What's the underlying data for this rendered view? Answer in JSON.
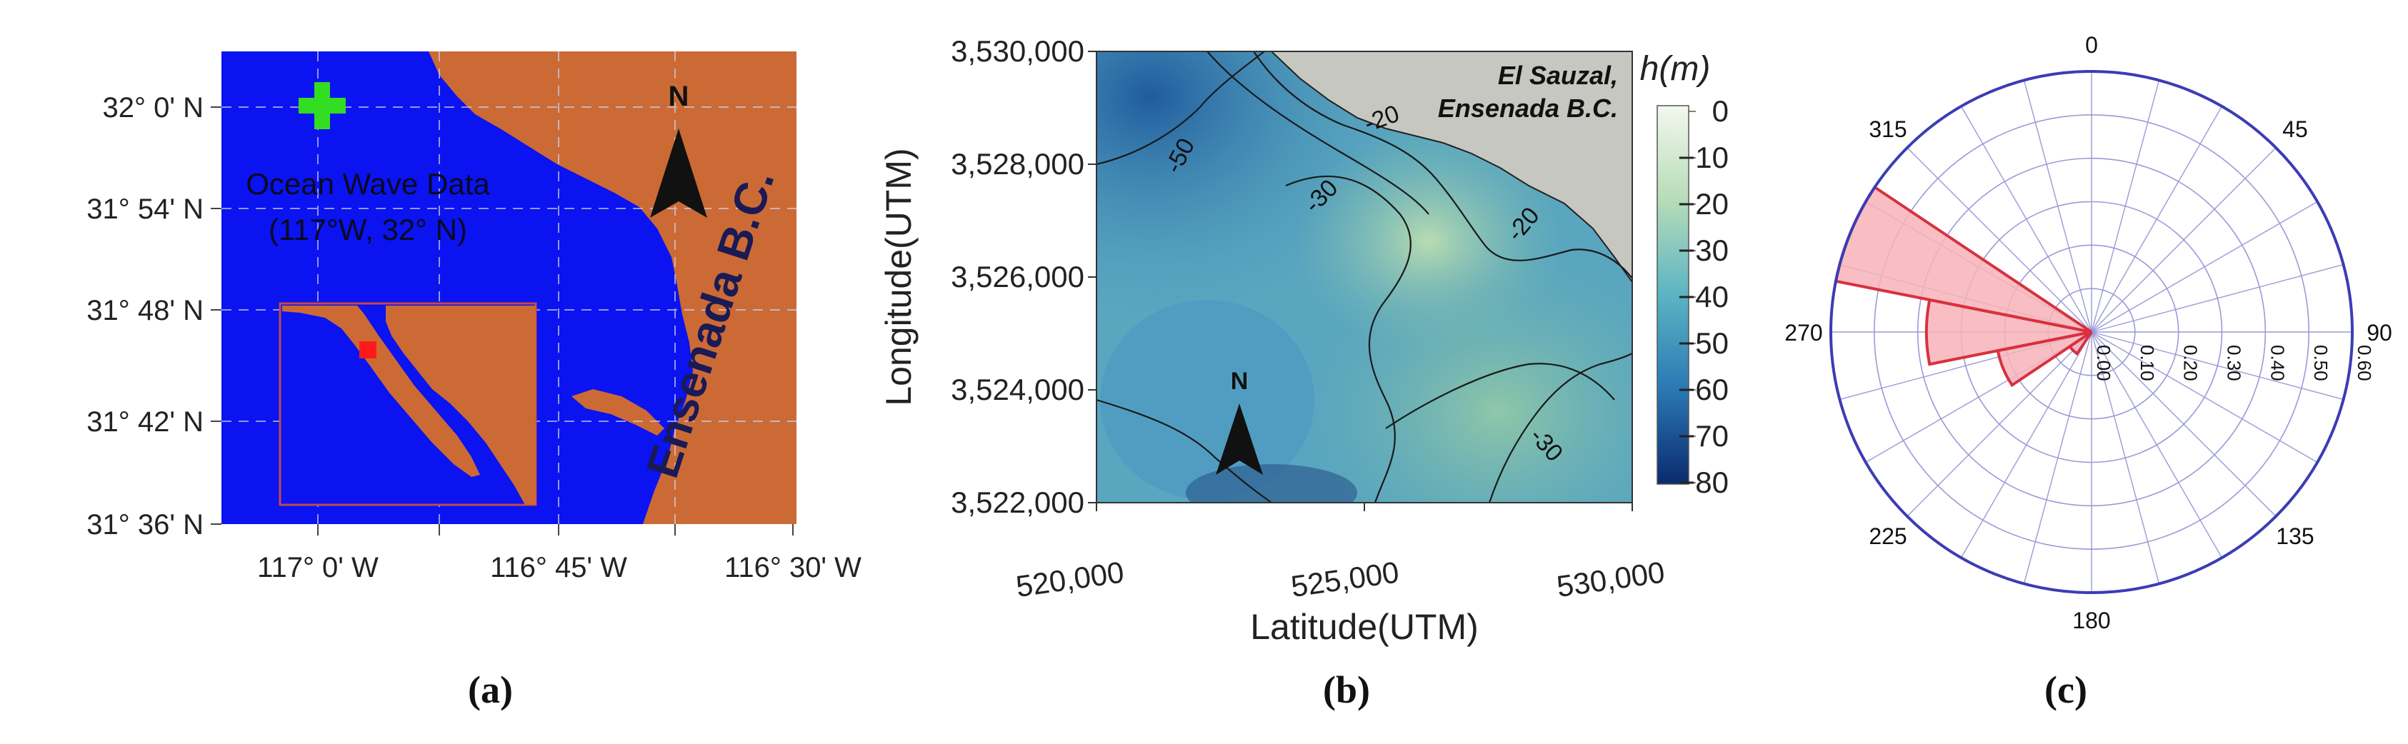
{
  "panel_a": {
    "caption": "(a)",
    "y_ticks": [
      "32° 0' N",
      "31° 54' N",
      "31° 48' N",
      "31° 42' N",
      "31° 36' N"
    ],
    "x_ticks": [
      "117° 0' W",
      "116° 45' W",
      "116° 30' W"
    ],
    "wave_label_line1": "Ocean Wave Data",
    "wave_label_line2": "(117°W, 32° N)",
    "place_label": "Ensenada B.C.",
    "north_label": "N",
    "colors": {
      "ocean": "#0a13f0",
      "land": "#cc6a35",
      "marker": "#33dd22",
      "inset_marker": "#ff1a1a",
      "inset_border": "#c2484e"
    }
  },
  "panel_b": {
    "caption": "(b)",
    "x_axis_label": "Latitude(UTM)",
    "y_axis_label": "Longitude(UTM)",
    "x_ticks": [
      "520,000",
      "525,000",
      "530,000"
    ],
    "y_ticks": [
      "3,530,000",
      "3,528,000",
      "3,526,000",
      "3,524,000",
      "3,522,000"
    ],
    "place_label_line1": "El Sauzal,",
    "place_label_line2": "Ensenada B.C.",
    "north_label": "N",
    "colorbar_title": "h(m)",
    "colorbar_ticks": [
      "0",
      "−10",
      "−20",
      "−30",
      "−40",
      "−50",
      "−60",
      "−70",
      "−80"
    ],
    "contour_labels": [
      "-50",
      "-20",
      "-30",
      "-20",
      "-30"
    ]
  },
  "panel_c": {
    "caption": "(c)",
    "angle_labels": [
      "0",
      "45",
      "90",
      "135",
      "180",
      "225",
      "270",
      "315"
    ],
    "radial_labels": [
      "0.00",
      "0.10",
      "0.20",
      "0.30",
      "0.40",
      "0.50",
      "0.60"
    ],
    "colors": {
      "frame": "#3c3cb4",
      "grid": "#9a9ad8",
      "petal_fill": "#f7b3b8",
      "petal_edge": "#d8313f"
    }
  },
  "chart_data": {
    "type": "rose",
    "direction_bins_deg": [
      270,
      292.5,
      247.5,
      225
    ],
    "values": [
      0.38,
      0.6,
      0.22,
      0.06
    ],
    "rlim": [
      0,
      0.6
    ]
  }
}
